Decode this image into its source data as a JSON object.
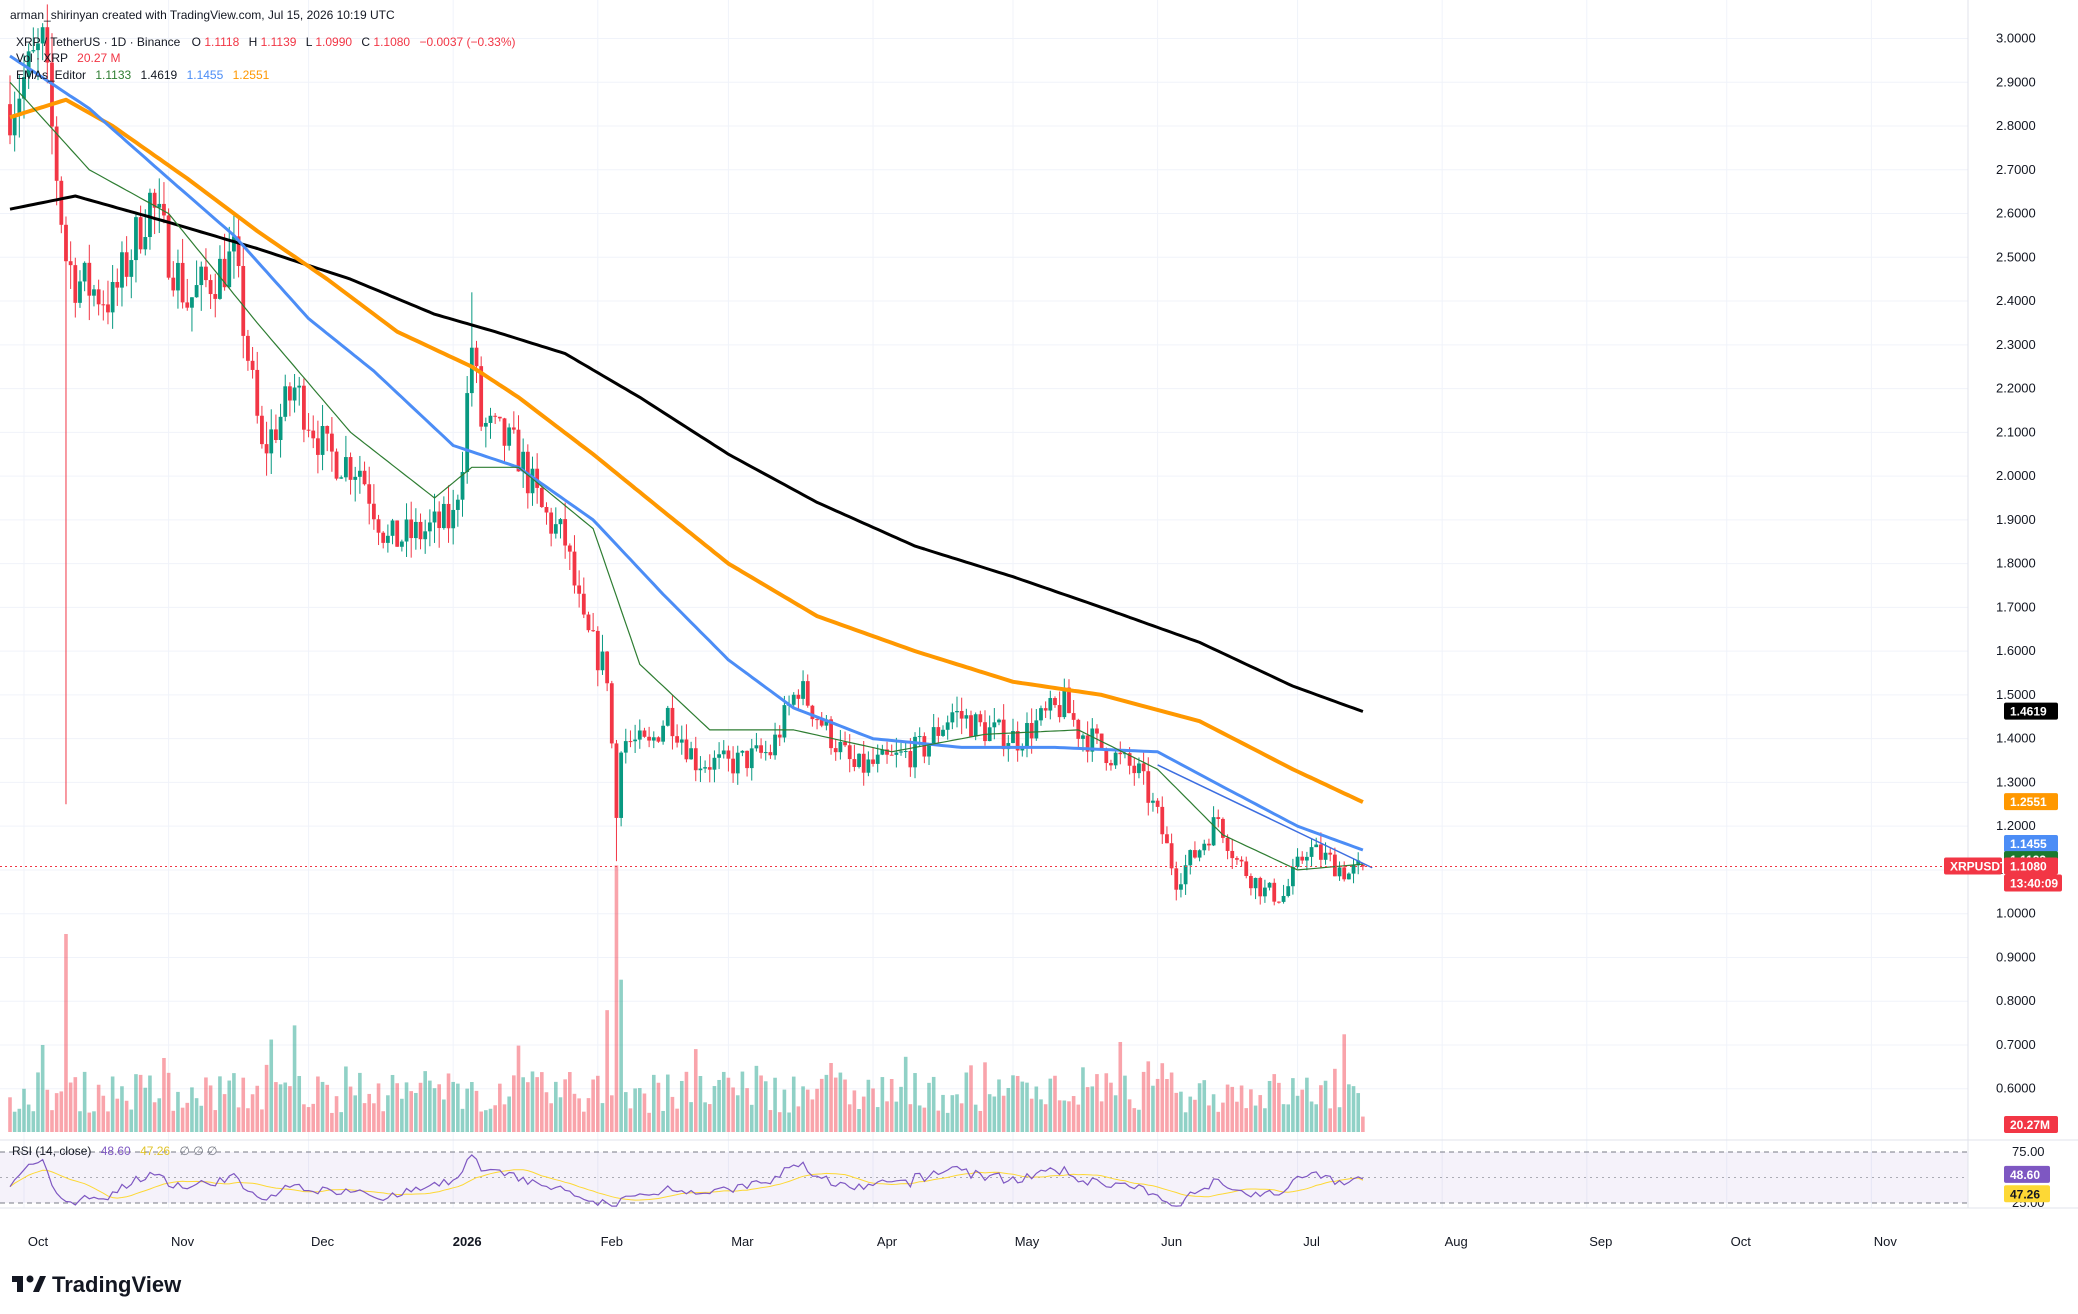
{
  "header": {
    "credit": "arman_shirinyan created with TradingView.com, Jul 15, 2026 10:19 UTC",
    "symbol_line": "XRP / TetherUS · 1D · Binance",
    "ohlc": {
      "o_label": "O",
      "o": "1.1118",
      "h_label": "H",
      "h": "1.1139",
      "l_label": "L",
      "l": "1.0990",
      "c_label": "C",
      "c": "1.1080",
      "chg": "−0.0037 (−0.33%)"
    },
    "vol_line": {
      "label": "Vol · XRP",
      "value": "20.27 M"
    },
    "ema_line": {
      "label": "EMAs_Editor",
      "v1": "1.1133",
      "v2": "1.4619",
      "v3": "1.1455",
      "v4": "1.2551"
    }
  },
  "rsi_header": {
    "label": "RSI (14, close)",
    "value": "48.60",
    "ma": "47.26",
    "extra": "∅ ∅ ∅"
  },
  "price_axis": {
    "ticks": [
      "3.0000",
      "2.9000",
      "2.8000",
      "2.7000",
      "2.6000",
      "2.5000",
      "2.4000",
      "2.3000",
      "2.2000",
      "2.1000",
      "2.0000",
      "1.9000",
      "1.8000",
      "1.7000",
      "1.6000",
      "1.5000",
      "1.4000",
      "1.3000",
      "1.2000",
      "1.1000",
      "1.0000",
      "0.9000",
      "0.8000",
      "0.7000",
      "0.6000"
    ],
    "labels": {
      "ema200": "1.4619",
      "ema100": "1.2551",
      "ema50": "1.1455",
      "ema20": "1.1133",
      "symbol": "XRPUSDT",
      "last": "1.1080",
      "countdown": "13:40:09",
      "volume": "20.27M"
    }
  },
  "rsi_axis": {
    "ticks": [
      "75.00",
      "25.00"
    ],
    "value": "48.60",
    "ma": "47.26"
  },
  "time_axis": {
    "ticks": [
      {
        "label": "Oct",
        "bold": false
      },
      {
        "label": "Nov",
        "bold": false
      },
      {
        "label": "Dec",
        "bold": false
      },
      {
        "label": "2026",
        "bold": true
      },
      {
        "label": "Feb",
        "bold": false
      },
      {
        "label": "Mar",
        "bold": false
      },
      {
        "label": "Apr",
        "bold": false
      },
      {
        "label": "May",
        "bold": false
      },
      {
        "label": "Jun",
        "bold": false
      },
      {
        "label": "Jul",
        "bold": false
      },
      {
        "label": "Aug",
        "bold": false
      },
      {
        "label": "Sep",
        "bold": false
      },
      {
        "label": "Oct",
        "bold": false
      },
      {
        "label": "Nov",
        "bold": false
      }
    ]
  },
  "logo": {
    "text": "TradingView"
  },
  "colors": {
    "up": "#089981",
    "down": "#f23645",
    "ema20": "#2e7d32",
    "ema50": "#4c8df6",
    "ema100": "#ff9800",
    "ema200": "#000000",
    "rsi": "#7e57c2",
    "rsi_ma": "#fdd835",
    "trendline": "#3d6ee0",
    "last_price": "#f23645"
  },
  "chart_data": {
    "type": "candlestick",
    "symbol": "XRPUSDT",
    "timeframe": "1D",
    "x_range": [
      "2025-09-28",
      "2026-11-20"
    ],
    "y_range": [
      0.57,
      3.03
    ],
    "last_price": 1.108,
    "price_anchors": [
      {
        "date": "2025-09-28",
        "close": 2.85
      },
      {
        "date": "2025-10-05",
        "close": 2.98
      },
      {
        "date": "2025-10-10",
        "close": 2.5
      },
      {
        "date": "2025-10-12",
        "close": 2.45
      },
      {
        "date": "2025-10-20",
        "close": 2.4
      },
      {
        "date": "2025-10-28",
        "close": 2.63
      },
      {
        "date": "2025-11-05",
        "close": 2.4
      },
      {
        "date": "2025-11-10",
        "close": 2.45
      },
      {
        "date": "2025-11-15",
        "close": 2.5
      },
      {
        "date": "2025-11-21",
        "close": 2.05
      },
      {
        "date": "2025-11-28",
        "close": 2.2
      },
      {
        "date": "2025-12-05",
        "close": 2.05
      },
      {
        "date": "2025-12-12",
        "close": 2.02
      },
      {
        "date": "2025-12-18",
        "close": 1.85
      },
      {
        "date": "2025-12-25",
        "close": 1.87
      },
      {
        "date": "2026-01-01",
        "close": 1.9
      },
      {
        "date": "2026-01-03",
        "close": 2.05
      },
      {
        "date": "2026-01-05",
        "close": 2.3
      },
      {
        "date": "2026-01-07",
        "close": 2.12
      },
      {
        "date": "2026-01-12",
        "close": 2.08
      },
      {
        "date": "2026-01-15",
        "close": 2.05
      },
      {
        "date": "2026-01-20",
        "close": 1.92
      },
      {
        "date": "2026-01-25",
        "close": 1.85
      },
      {
        "date": "2026-01-29",
        "close": 1.65
      },
      {
        "date": "2026-02-03",
        "close": 1.55
      },
      {
        "date": "2026-02-05",
        "close": 1.22
      },
      {
        "date": "2026-02-06",
        "close": 1.4
      },
      {
        "date": "2026-02-12",
        "close": 1.38
      },
      {
        "date": "2026-02-16",
        "close": 1.46
      },
      {
        "date": "2026-02-22",
        "close": 1.35
      },
      {
        "date": "2026-03-01",
        "close": 1.34
      },
      {
        "date": "2026-03-10",
        "close": 1.37
      },
      {
        "date": "2026-03-16",
        "close": 1.52
      },
      {
        "date": "2026-03-22",
        "close": 1.42
      },
      {
        "date": "2026-03-28",
        "close": 1.33
      },
      {
        "date": "2026-04-05",
        "close": 1.35
      },
      {
        "date": "2026-04-12",
        "close": 1.38
      },
      {
        "date": "2026-04-18",
        "close": 1.46
      },
      {
        "date": "2026-04-25",
        "close": 1.42
      },
      {
        "date": "2026-05-02",
        "close": 1.4
      },
      {
        "date": "2026-05-08",
        "close": 1.45
      },
      {
        "date": "2026-05-12",
        "close": 1.48
      },
      {
        "date": "2026-05-15",
        "close": 1.42
      },
      {
        "date": "2026-05-20",
        "close": 1.38
      },
      {
        "date": "2026-05-28",
        "close": 1.32
      },
      {
        "date": "2026-06-01",
        "close": 1.22
      },
      {
        "date": "2026-06-05",
        "close": 1.08
      },
      {
        "date": "2026-06-10",
        "close": 1.15
      },
      {
        "date": "2026-06-14",
        "close": 1.22
      },
      {
        "date": "2026-06-18",
        "close": 1.12
      },
      {
        "date": "2026-06-24",
        "close": 1.05
      },
      {
        "date": "2026-06-28",
        "close": 1.04
      },
      {
        "date": "2026-07-03",
        "close": 1.15
      },
      {
        "date": "2026-07-08",
        "close": 1.12
      },
      {
        "date": "2026-07-12",
        "close": 1.09
      },
      {
        "date": "2026-07-15",
        "close": 1.108
      }
    ],
    "series": [
      {
        "name": "EMA 200",
        "color": "#000000",
        "points": [
          [
            "2025-09-28",
            2.61
          ],
          [
            "2025-10-12",
            2.64
          ],
          [
            "2025-11-01",
            2.58
          ],
          [
            "2025-11-20",
            2.52
          ],
          [
            "2025-12-10",
            2.45
          ],
          [
            "2025-12-28",
            2.37
          ],
          [
            "2026-01-10",
            2.33
          ],
          [
            "2026-01-25",
            2.28
          ],
          [
            "2026-02-10",
            2.18
          ],
          [
            "2026-03-01",
            2.05
          ],
          [
            "2026-03-20",
            1.94
          ],
          [
            "2026-04-10",
            1.84
          ],
          [
            "2026-05-01",
            1.77
          ],
          [
            "2026-05-20",
            1.7
          ],
          [
            "2026-06-10",
            1.62
          ],
          [
            "2026-06-30",
            1.52
          ],
          [
            "2026-07-15",
            1.462
          ]
        ]
      },
      {
        "name": "EMA 100",
        "color": "#ff9800",
        "points": [
          [
            "2025-09-28",
            2.82
          ],
          [
            "2025-10-10",
            2.86
          ],
          [
            "2025-10-20",
            2.8
          ],
          [
            "2025-11-05",
            2.68
          ],
          [
            "2025-11-20",
            2.56
          ],
          [
            "2025-12-05",
            2.45
          ],
          [
            "2025-12-20",
            2.33
          ],
          [
            "2026-01-05",
            2.25
          ],
          [
            "2026-01-15",
            2.18
          ],
          [
            "2026-01-31",
            2.05
          ],
          [
            "2026-02-15",
            1.92
          ],
          [
            "2026-03-01",
            1.8
          ],
          [
            "2026-03-20",
            1.68
          ],
          [
            "2026-04-10",
            1.6
          ],
          [
            "2026-05-01",
            1.53
          ],
          [
            "2026-05-20",
            1.5
          ],
          [
            "2026-06-10",
            1.44
          ],
          [
            "2026-06-30",
            1.33
          ],
          [
            "2026-07-15",
            1.255
          ]
        ]
      },
      {
        "name": "EMA 50",
        "color": "#4c8df6",
        "points": [
          [
            "2025-09-28",
            2.96
          ],
          [
            "2025-10-15",
            2.84
          ],
          [
            "2025-11-01",
            2.68
          ],
          [
            "2025-11-15",
            2.55
          ],
          [
            "2025-12-01",
            2.36
          ],
          [
            "2025-12-15",
            2.24
          ],
          [
            "2026-01-01",
            2.07
          ],
          [
            "2026-01-15",
            2.02
          ],
          [
            "2026-01-31",
            1.9
          ],
          [
            "2026-02-15",
            1.73
          ],
          [
            "2026-03-01",
            1.58
          ],
          [
            "2026-03-15",
            1.47
          ],
          [
            "2026-04-01",
            1.4
          ],
          [
            "2026-04-20",
            1.38
          ],
          [
            "2026-05-10",
            1.38
          ],
          [
            "2026-06-01",
            1.37
          ],
          [
            "2026-06-15",
            1.29
          ],
          [
            "2026-07-01",
            1.2
          ],
          [
            "2026-07-15",
            1.1455
          ]
        ]
      },
      {
        "name": "EMA 20",
        "color": "#2e7d32",
        "points": [
          [
            "2025-09-28",
            2.9
          ],
          [
            "2025-10-15",
            2.7
          ],
          [
            "2025-11-01",
            2.6
          ],
          [
            "2025-11-20",
            2.35
          ],
          [
            "2025-12-10",
            2.1
          ],
          [
            "2025-12-28",
            1.95
          ],
          [
            "2026-01-05",
            2.02
          ],
          [
            "2026-01-15",
            2.02
          ],
          [
            "2026-01-31",
            1.88
          ],
          [
            "2026-02-10",
            1.57
          ],
          [
            "2026-02-25",
            1.42
          ],
          [
            "2026-03-15",
            1.42
          ],
          [
            "2026-04-05",
            1.37
          ],
          [
            "2026-04-25",
            1.41
          ],
          [
            "2026-05-15",
            1.42
          ],
          [
            "2026-06-01",
            1.33
          ],
          [
            "2026-06-15",
            1.18
          ],
          [
            "2026-07-01",
            1.1
          ],
          [
            "2026-07-15",
            1.1133
          ]
        ]
      },
      {
        "name": "RSI (14, close)",
        "color": "#7e57c2",
        "range": [
          25,
          75
        ],
        "last": 48.6
      },
      {
        "name": "RSI MA",
        "color": "#fdd835",
        "last": 47.26
      }
    ],
    "trendline": {
      "from": [
        "2026-06-01",
        1.34
      ],
      "to": [
        "2026-07-17",
        1.105
      ]
    },
    "volume": {
      "max_m": 260,
      "last_m": 20.27
    },
    "xlabel": "",
    "ylabel": ""
  }
}
